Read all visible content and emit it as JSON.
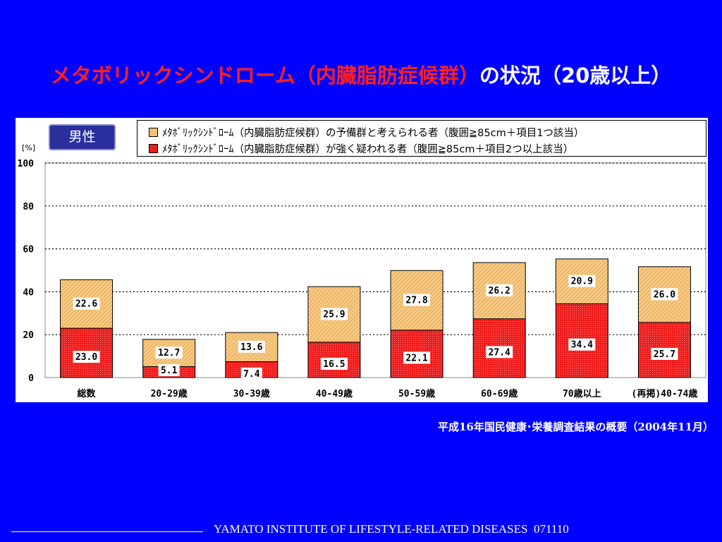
{
  "slide": {
    "title_red": "メタボリックシンドローム（内臓脂肪症候群）",
    "title_white": "の状況（20歳以上）",
    "source": "平成16年国民健康･栄養調査結果の概要（2004年11月）",
    "footer": "YAMATO INSTITUTE OF LIFESTYLE-RELATED DISEASES  071110"
  },
  "chart_data": {
    "type": "bar",
    "stacked": true,
    "panel_label": "男性",
    "unit_label": "[%]",
    "categories": [
      "総数",
      "20-29歳",
      "30-39歳",
      "40-49歳",
      "50-59歳",
      "60-69歳",
      "70歳以上",
      "(再掲)40-74歳"
    ],
    "series": [
      {
        "name": "ﾒﾀﾎﾞﾘｯｸｼﾝﾄﾞﾛｰﾑ（内臓脂肪症候群）が強く疑われる者（腹囲≧85cm＋項目2つ以上該当）",
        "color": "#ee1c1c",
        "values": [
          23.0,
          5.1,
          7.4,
          16.5,
          22.1,
          27.4,
          34.4,
          25.7
        ]
      },
      {
        "name": "ﾒﾀﾎﾞﾘｯｸｼﾝﾄﾞﾛｰﾑ（内臓脂肪症候群）の予備群と考えられる者（腹囲≧85cm＋項目1つ該当）",
        "color": "#f4c070",
        "values": [
          22.6,
          12.7,
          13.6,
          25.9,
          27.8,
          26.2,
          20.9,
          26.0
        ]
      }
    ],
    "yticks": [
      0,
      20,
      40,
      60,
      80,
      100
    ],
    "ylim": [
      0,
      100
    ],
    "grid": "dotted horizontal",
    "legend": "top"
  }
}
